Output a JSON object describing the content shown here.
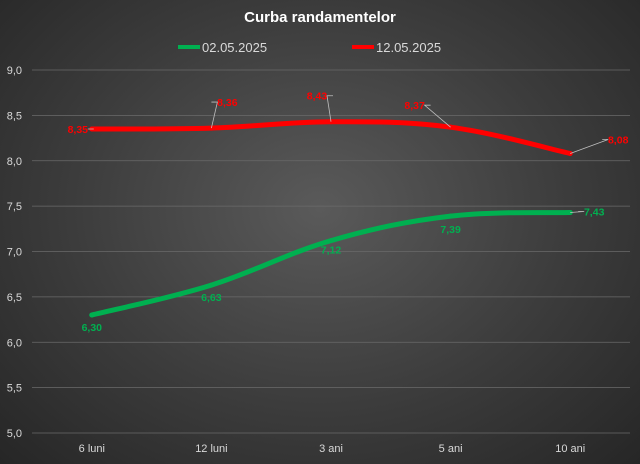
{
  "chart_data": {
    "type": "line",
    "title": "Curba randamentelor",
    "categories": [
      "6 luni",
      "12 luni",
      "3 ani",
      "5 ani",
      "10 ani"
    ],
    "series": [
      {
        "name": "02.05.2025",
        "color": "#00b050",
        "values": [
          6.3,
          6.63,
          7.12,
          7.39,
          7.43
        ],
        "labels": [
          "6,30",
          "6,63",
          "7,12",
          "7,39",
          "7,43"
        ]
      },
      {
        "name": "12.05.2025",
        "color": "#ff0000",
        "values": [
          8.35,
          8.36,
          8.43,
          8.37,
          8.08
        ],
        "labels": [
          "8,35",
          "8,36",
          "8,43",
          "8,37",
          "8,08"
        ]
      }
    ],
    "ylim": [
      5.0,
      9.0
    ],
    "y_ticks": [
      "5,0",
      "5,5",
      "6,0",
      "6,5",
      "7,0",
      "7,5",
      "8,0",
      "8,5",
      "9,0"
    ],
    "grid": true,
    "legend_position": "top"
  }
}
